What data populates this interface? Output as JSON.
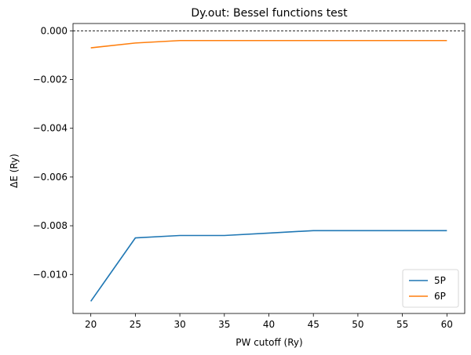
{
  "chart_data": {
    "type": "line",
    "title": "Dy.out: Bessel functions test",
    "xlabel": "PW cutoff (Ry)",
    "ylabel": "ΔE (Ry)",
    "x": [
      20,
      25,
      30,
      35,
      40,
      45,
      50,
      55,
      60
    ],
    "xlim": [
      18,
      62
    ],
    "ylim": [
      -0.0116,
      0.0003
    ],
    "xticks": [
      20,
      25,
      30,
      35,
      40,
      45,
      50,
      55,
      60
    ],
    "yticks": [
      0.0,
      -0.002,
      -0.004,
      -0.006,
      -0.008,
      -0.01
    ],
    "ytick_labels": [
      "0.000",
      "−0.002",
      "−0.004",
      "−0.006",
      "−0.008",
      "−0.010"
    ],
    "reference_line": {
      "y": 0,
      "style": "dashed",
      "color": "#000000"
    },
    "series": [
      {
        "name": "5P",
        "color": "#1f77b4",
        "values": [
          -0.0111,
          -0.0085,
          -0.0084,
          -0.0084,
          -0.0083,
          -0.0082,
          -0.0082,
          -0.0082,
          -0.0082
        ]
      },
      {
        "name": "6P",
        "color": "#ff7f0e",
        "values": [
          -0.0007,
          -0.0005,
          -0.0004,
          -0.0004,
          -0.0004,
          -0.0004,
          -0.0004,
          -0.0004,
          -0.0004
        ]
      }
    ],
    "legend_position": "bottom-right",
    "grid": false
  }
}
